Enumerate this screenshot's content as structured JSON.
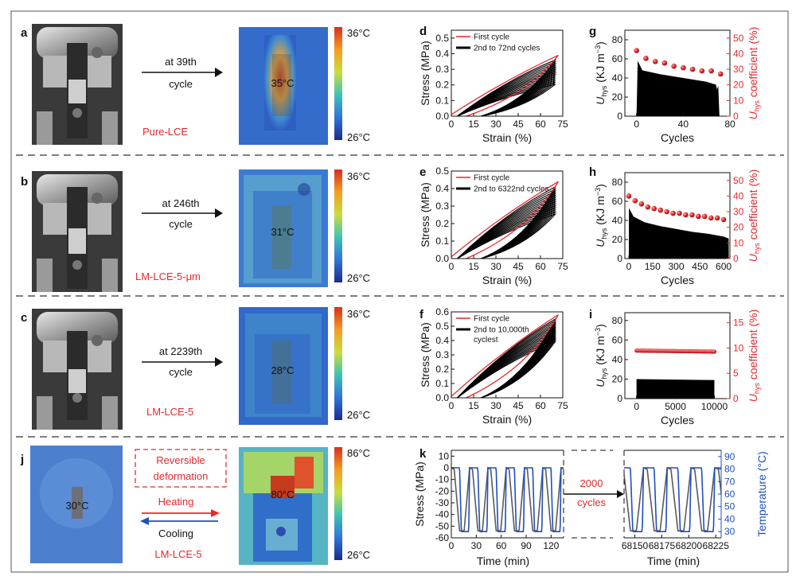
{
  "colors": {
    "red": "#e8282b",
    "blue": "#1f4fbf",
    "gray": "#5a5a5a",
    "black": "#000000"
  },
  "rows": [
    {
      "letter": "a",
      "arrow_top": "at 39th",
      "arrow_bottom": "cycle",
      "material": "Pure-LCE",
      "temp": "35°C",
      "scale_max": "36°C",
      "scale_min": "26°C"
    },
    {
      "letter": "b",
      "arrow_top": "at 246th",
      "arrow_bottom": "cycle",
      "material": "LM-LCE-5-μm",
      "temp": "31°C",
      "scale_max": "36°C",
      "scale_min": "26°C"
    },
    {
      "letter": "c",
      "arrow_top": "at 2239th",
      "arrow_bottom": "cycle",
      "material": "LM-LCE-5",
      "temp": "28°C",
      "scale_max": "36°C",
      "scale_min": "26°C"
    }
  ],
  "row_j": {
    "letter": "j",
    "left_temp": "30°C",
    "box_line1": "Reversible",
    "box_line2": "deformation",
    "heating": "Heating",
    "cooling": "Cooling",
    "material": "LM-LCE-5",
    "right_temp": "80°C",
    "scale_max": "86°C",
    "scale_min": "26°C"
  },
  "chart_data": [
    {
      "panel": "d",
      "type": "line",
      "xlabel": "Strain (%)",
      "ylabel": "Stress (MPa)",
      "xlim": [
        0,
        75
      ],
      "ylim": [
        0,
        0.55
      ],
      "xticks": [
        "0",
        "15",
        "30",
        "45",
        "60",
        "75"
      ],
      "yticks": [
        "0.0",
        "0.1",
        "0.2",
        "0.3",
        "0.4",
        "0.5"
      ],
      "legend": [
        "First cycle",
        "2nd to 72nd cycles"
      ],
      "series": [
        {
          "name": "First cycle",
          "peak_stress": 0.39
        },
        {
          "name": "2nd to 72nd cycles",
          "peak_stress": 0.36
        }
      ]
    },
    {
      "panel": "e",
      "type": "line",
      "xlabel": "Strain (%)",
      "ylabel": "Stress (MPa)",
      "xlim": [
        0,
        75
      ],
      "ylim": [
        0,
        0.5
      ],
      "xticks": [
        "0",
        "15",
        "30",
        "45",
        "60",
        "75"
      ],
      "yticks": [
        "0.0",
        "0.1",
        "0.2",
        "0.3",
        "0.4",
        "0.5"
      ],
      "legend": [
        "First cycle",
        "2nd to 6322nd cycles"
      ],
      "series": [
        {
          "name": "First cycle",
          "peak_stress": 0.44
        },
        {
          "name": "2nd to 6322nd cycles",
          "peak_stress": 0.41
        }
      ]
    },
    {
      "panel": "f",
      "type": "line",
      "xlabel": "Strain (%)",
      "ylabel": "Stress (MPa)",
      "xlim": [
        0,
        75
      ],
      "ylim": [
        0,
        0.6
      ],
      "xticks": [
        "0",
        "15",
        "30",
        "45",
        "60",
        "75"
      ],
      "yticks": [
        "0.0",
        "0.1",
        "0.2",
        "0.3",
        "0.4",
        "0.5",
        "0.6"
      ],
      "legend": [
        "First cycle",
        "2nd to 10,000th",
        "cyclest"
      ],
      "series": [
        {
          "name": "First cycle",
          "peak_stress": 0.58
        },
        {
          "name": "2nd to 10,000th cyclest",
          "peak_stress": 0.55
        }
      ]
    },
    {
      "panel": "g",
      "type": "area",
      "xlabel": "Cycles",
      "ylabel": "U",
      "ylabel_sub": "hys",
      "ylabel_unit": " (KJ m",
      "ylabel_sup": "−3",
      "ylabel_close": ")",
      "ylabel2": "U",
      "ylabel2_sub": "hys",
      "ylabel2_rest": " coefficient (%)",
      "xlim": [
        -10,
        80
      ],
      "ylim": [
        0,
        90
      ],
      "y2lim": [
        0,
        55
      ],
      "xticks": [
        "0",
        "40",
        "80"
      ],
      "yticks": [
        "0",
        "20",
        "40",
        "60",
        "80"
      ],
      "y2ticks": [
        "0",
        "10",
        "20",
        "30",
        "40",
        "50"
      ],
      "area": {
        "x": [
          0,
          1,
          5,
          20,
          40,
          60,
          68,
          69,
          70,
          71
        ],
        "y": [
          0,
          58,
          48,
          44,
          40,
          36,
          33,
          28,
          32,
          0
        ]
      },
      "points": {
        "x": [
          0,
          8,
          16,
          24,
          32,
          40,
          48,
          56,
          64,
          72
        ],
        "y": [
          42,
          37,
          35,
          34,
          32,
          31,
          30,
          29,
          29,
          27
        ]
      }
    },
    {
      "panel": "h",
      "type": "area",
      "xlabel": "Cycles",
      "ylabel": "U",
      "ylabel_sub": "hys",
      "ylabel_unit": " (KJ m",
      "ylabel_sup": "−3",
      "ylabel_close": ")",
      "ylabel2": "U",
      "ylabel2_sub": "hys",
      "ylabel2_rest": " coefficient (%)",
      "xlim": [
        -25,
        640
      ],
      "ylim": [
        0,
        90
      ],
      "y2lim": [
        0,
        55
      ],
      "xticks": [
        "0",
        "150",
        "300",
        "450",
        "600"
      ],
      "yticks": [
        "0",
        "20",
        "40",
        "60",
        "80"
      ],
      "y2ticks": [
        "0",
        "10",
        "20",
        "30",
        "40",
        "50"
      ],
      "area": {
        "x": [
          0,
          1,
          30,
          100,
          200,
          300,
          400,
          500,
          600,
          632,
          633
        ],
        "y": [
          0,
          53,
          44,
          38,
          34,
          31,
          28,
          26,
          23,
          21,
          0
        ]
      },
      "points": {
        "x": [
          0,
          40,
          80,
          120,
          160,
          200,
          240,
          280,
          320,
          360,
          400,
          440,
          480,
          520,
          560,
          600
        ],
        "y": [
          40,
          37,
          35,
          33,
          32,
          31,
          30,
          29,
          29,
          28,
          28,
          27,
          27,
          26,
          26,
          25
        ]
      }
    },
    {
      "panel": "i",
      "type": "area",
      "xlabel": "Cycles",
      "ylabel": "U",
      "ylabel_sub": "hys",
      "ylabel_unit": " (KJ m",
      "ylabel_sup": "−3",
      "ylabel_close": ")",
      "ylabel2": "U",
      "ylabel2_sub": "hys",
      "ylabel2_rest": " coefficient (%)",
      "xlim": [
        -1500,
        12000
      ],
      "ylim": [
        0,
        88
      ],
      "y2lim": [
        0,
        17
      ],
      "xticks": [
        "0",
        "5000",
        "10000"
      ],
      "yticks": [
        "0",
        "20",
        "40",
        "60",
        "80"
      ],
      "y2ticks": [
        "0",
        "5",
        "10",
        "15"
      ],
      "area": {
        "x": [
          0,
          1,
          5000,
          10000,
          10001
        ],
        "y": [
          0,
          20,
          19.5,
          19,
          0
        ]
      },
      "points_line": {
        "x": [
          0,
          10000
        ],
        "y": [
          9.5,
          9.3
        ]
      }
    },
    {
      "panel": "k",
      "type": "line",
      "xlabel": "Time (min)",
      "ylabel": "Stress (MPa)",
      "ylabel2": "Temperature (°C)",
      "ylim": [
        -60,
        15
      ],
      "y2lim": [
        25,
        95
      ],
      "xticks_left": [
        "0",
        "30",
        "60",
        "90",
        "120"
      ],
      "xticks_right": [
        "68150",
        "68175",
        "68200",
        "68225"
      ],
      "yticks": [
        "10",
        "0",
        "-10",
        "-20",
        "-30",
        "-40",
        "-50",
        "-60"
      ],
      "y2ticks": [
        "90",
        "80",
        "70",
        "60",
        "50",
        "40",
        "30"
      ],
      "break_label_1": "2000",
      "break_label_2": "cycles",
      "series": [
        {
          "name": "Stress",
          "min": -54,
          "max": 0,
          "period_min": 22
        },
        {
          "name": "Temperature",
          "min": 30,
          "max": 81,
          "period_min": 22
        }
      ]
    }
  ]
}
